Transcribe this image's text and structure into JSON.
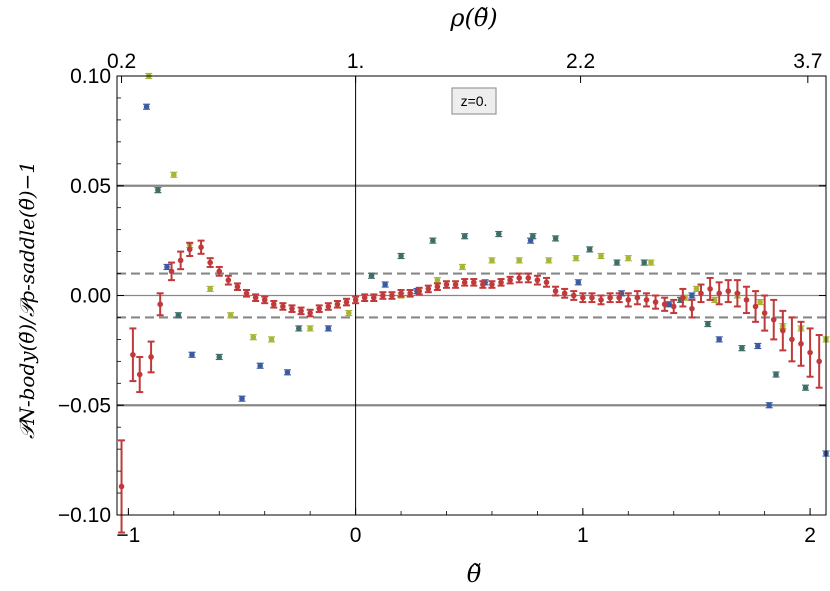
{
  "chart_data": {
    "type": "scatter",
    "title": "",
    "xlabel": "θ̃",
    "ylabel": "𝒫N-body(θ̃)/𝒫ρ-saddle(θ̃)−1",
    "top_axis_label": "ρ(θ̃)",
    "xlim": [
      -1.05,
      2.07
    ],
    "ylim": [
      -0.1,
      0.1
    ],
    "grid": false,
    "x_ticks": [
      {
        "value": -1,
        "label": "−1"
      },
      {
        "value": 0,
        "label": "0"
      },
      {
        "value": 1,
        "label": "1"
      },
      {
        "value": 2,
        "label": "2"
      }
    ],
    "y_ticks": [
      {
        "value": 0.1,
        "label": "0.10"
      },
      {
        "value": 0.05,
        "label": "0.05"
      },
      {
        "value": 0.0,
        "label": "0.00"
      },
      {
        "value": -0.05,
        "label": "−0.05"
      },
      {
        "value": -0.1,
        "label": "−0.10"
      }
    ],
    "top_ticks": [
      {
        "value": -1.03,
        "label": "0.2"
      },
      {
        "value": 0.0,
        "label": "1."
      },
      {
        "value": 0.99,
        "label": "2.2"
      },
      {
        "value": 1.99,
        "label": "3.7"
      }
    ],
    "reference_lines": [
      {
        "y": 0.05,
        "style": "solid",
        "color": "#888888"
      },
      {
        "y": -0.05,
        "style": "solid",
        "color": "#888888"
      },
      {
        "y": 0.01,
        "style": "dashed",
        "color": "#888888"
      },
      {
        "y": -0.01,
        "style": "dashed",
        "color": "#888888"
      },
      {
        "y": 0.0,
        "style": "solid",
        "color": "#888888"
      },
      {
        "x": 0.0,
        "style": "solid",
        "color": "#000000"
      }
    ],
    "annotation": "z=0.",
    "series": [
      {
        "color": "#3b5ba5",
        "points": [
          [
            -0.92,
            0.086
          ],
          [
            -0.83,
            0.013
          ],
          [
            -0.72,
            -0.027
          ],
          [
            -0.5,
            -0.047
          ],
          [
            -0.42,
            -0.032
          ],
          [
            -0.3,
            -0.035
          ],
          [
            -0.12,
            -0.015
          ],
          [
            0.13,
            0.005
          ],
          [
            0.27,
            0.002
          ],
          [
            0.57,
            0.006
          ],
          [
            0.77,
            0.025
          ],
          [
            0.98,
            0.006
          ],
          [
            1.17,
            0.001
          ],
          [
            1.38,
            -0.004
          ],
          [
            1.48,
            0.0
          ],
          [
            1.6,
            -0.02
          ],
          [
            1.77,
            -0.023
          ],
          [
            1.82,
            -0.05
          ],
          [
            2.07,
            -0.072
          ]
        ]
      },
      {
        "color": "#3f6e68",
        "points": [
          [
            -0.87,
            0.048
          ],
          [
            -0.78,
            -0.009
          ],
          [
            -0.6,
            -0.028
          ],
          [
            -0.25,
            -0.015
          ],
          [
            0.07,
            0.009
          ],
          [
            0.2,
            0.018
          ],
          [
            0.34,
            0.025
          ],
          [
            0.48,
            0.027
          ],
          [
            0.63,
            0.028
          ],
          [
            0.78,
            0.027
          ],
          [
            0.88,
            0.026
          ],
          [
            1.03,
            0.021
          ],
          [
            1.15,
            0.015
          ],
          [
            1.27,
            0.015
          ],
          [
            1.43,
            -0.002
          ],
          [
            1.55,
            -0.013
          ],
          [
            1.7,
            -0.024
          ],
          [
            1.85,
            -0.036
          ],
          [
            1.98,
            -0.042
          ]
        ]
      },
      {
        "color": "#a8b535",
        "points": [
          [
            -0.91,
            0.1
          ],
          [
            -0.8,
            0.055
          ],
          [
            -0.73,
            0.023
          ],
          [
            -0.64,
            0.003
          ],
          [
            -0.55,
            -0.009
          ],
          [
            -0.45,
            -0.019
          ],
          [
            -0.37,
            -0.02
          ],
          [
            -0.2,
            -0.015
          ],
          [
            -0.03,
            -0.008
          ],
          [
            0.2,
            0.0
          ],
          [
            0.36,
            0.007
          ],
          [
            0.47,
            0.013
          ],
          [
            0.6,
            0.016
          ],
          [
            0.72,
            0.016
          ],
          [
            0.85,
            0.016
          ],
          [
            0.97,
            0.017
          ],
          [
            1.08,
            0.018
          ],
          [
            1.2,
            0.017
          ],
          [
            1.3,
            0.015
          ],
          [
            1.45,
            -0.001
          ],
          [
            1.5,
            0.003
          ],
          [
            1.58,
            -0.002
          ],
          [
            1.68,
            0.0
          ],
          [
            1.78,
            -0.003
          ],
          [
            1.88,
            -0.014
          ],
          [
            1.96,
            -0.015
          ],
          [
            2.07,
            -0.02
          ]
        ]
      },
      {
        "color": "#c0393b",
        "points": [
          [
            -1.03,
            -0.087,
            0.021
          ],
          [
            -0.98,
            -0.027,
            0.012
          ],
          [
            -0.95,
            -0.036,
            0.008
          ],
          [
            -0.9,
            -0.028,
            0.007
          ],
          [
            -0.86,
            -0.004,
            0.005
          ],
          [
            -0.81,
            0.011,
            0.004
          ],
          [
            -0.77,
            0.016,
            0.004
          ],
          [
            -0.73,
            0.021,
            0.003
          ],
          [
            -0.68,
            0.022,
            0.003
          ],
          [
            -0.64,
            0.015,
            0.002
          ],
          [
            -0.6,
            0.011,
            0.002
          ],
          [
            -0.56,
            0.007,
            0.002
          ],
          [
            -0.52,
            0.004,
            0.0015
          ],
          [
            -0.48,
            0.001,
            0.0015
          ],
          [
            -0.44,
            -0.001,
            0.0015
          ],
          [
            -0.4,
            -0.002,
            0.0015
          ],
          [
            -0.36,
            -0.004,
            0.0015
          ],
          [
            -0.32,
            -0.005,
            0.0015
          ],
          [
            -0.28,
            -0.006,
            0.0015
          ],
          [
            -0.24,
            -0.007,
            0.0015
          ],
          [
            -0.2,
            -0.008,
            0.0015
          ],
          [
            -0.16,
            -0.006,
            0.0015
          ],
          [
            -0.12,
            -0.005,
            0.0015
          ],
          [
            -0.08,
            -0.004,
            0.0015
          ],
          [
            -0.04,
            -0.003,
            0.0015
          ],
          [
            0.0,
            -0.002,
            0.0015
          ],
          [
            0.04,
            -0.001,
            0.0015
          ],
          [
            0.08,
            -0.001,
            0.0015
          ],
          [
            0.12,
            0.0,
            0.0015
          ],
          [
            0.16,
            0.0,
            0.0015
          ],
          [
            0.2,
            0.001,
            0.0015
          ],
          [
            0.24,
            0.001,
            0.0015
          ],
          [
            0.28,
            0.002,
            0.0015
          ],
          [
            0.32,
            0.003,
            0.0015
          ],
          [
            0.36,
            0.004,
            0.0015
          ],
          [
            0.4,
            0.005,
            0.0015
          ],
          [
            0.44,
            0.005,
            0.0015
          ],
          [
            0.48,
            0.006,
            0.0015
          ],
          [
            0.52,
            0.006,
            0.0015
          ],
          [
            0.56,
            0.005,
            0.0015
          ],
          [
            0.6,
            0.005,
            0.0015
          ],
          [
            0.64,
            0.006,
            0.0015
          ],
          [
            0.68,
            0.007,
            0.0015
          ],
          [
            0.72,
            0.008,
            0.002
          ],
          [
            0.76,
            0.008,
            0.002
          ],
          [
            0.8,
            0.007,
            0.002
          ],
          [
            0.84,
            0.006,
            0.002
          ],
          [
            0.88,
            0.002,
            0.002
          ],
          [
            0.92,
            0.001,
            0.002
          ],
          [
            0.96,
            0.0,
            0.002
          ],
          [
            1.0,
            -0.001,
            0.002
          ],
          [
            1.04,
            -0.001,
            0.002
          ],
          [
            1.08,
            -0.002,
            0.002
          ],
          [
            1.12,
            -0.001,
            0.002
          ],
          [
            1.16,
            -0.001,
            0.002
          ],
          [
            1.2,
            -0.002,
            0.003
          ],
          [
            1.24,
            -0.001,
            0.003
          ],
          [
            1.28,
            -0.002,
            0.003
          ],
          [
            1.32,
            -0.003,
            0.003
          ],
          [
            1.36,
            -0.004,
            0.003
          ],
          [
            1.4,
            -0.005,
            0.003
          ],
          [
            1.44,
            -0.001,
            0.004
          ],
          [
            1.48,
            -0.006,
            0.004
          ],
          [
            1.52,
            0.001,
            0.004
          ],
          [
            1.56,
            0.003,
            0.005
          ],
          [
            1.6,
            0.001,
            0.005
          ],
          [
            1.64,
            0.002,
            0.005
          ],
          [
            1.68,
            0.001,
            0.006
          ],
          [
            1.72,
            -0.002,
            0.006
          ],
          [
            1.76,
            -0.005,
            0.007
          ],
          [
            1.8,
            -0.008,
            0.008
          ],
          [
            1.84,
            -0.011,
            0.009
          ],
          [
            1.88,
            -0.016,
            0.009
          ],
          [
            1.92,
            -0.02,
            0.01
          ],
          [
            1.96,
            -0.022,
            0.01
          ],
          [
            2.0,
            -0.026,
            0.011
          ],
          [
            2.04,
            -0.03,
            0.012
          ]
        ]
      }
    ]
  }
}
